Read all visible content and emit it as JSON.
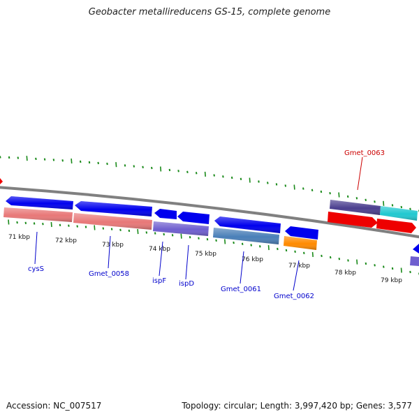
{
  "title": "Geobacter metallireducens GS-15, complete genome",
  "footer": {
    "accession": "Accession: NC_007517",
    "summary": "Topology: circular; Length: 3,997,420 bp; Genes: 3,577"
  },
  "kbp_labels": [
    "71 kbp",
    "72 kbp",
    "73 kbp",
    "74 kbp",
    "75 kbp",
    "76 kbp",
    "77 kbp",
    "78 kbp",
    "79 kbp"
  ],
  "gene_labels": [
    {
      "text": "cysS",
      "color": "#0000cc"
    },
    {
      "text": "Gmet_0058",
      "color": "#0000cc"
    },
    {
      "text": "ispF",
      "color": "#0000cc"
    },
    {
      "text": "ispD",
      "color": "#0000cc"
    },
    {
      "text": "Gmet_0061",
      "color": "#0000cc"
    },
    {
      "text": "Gmet_0062",
      "color": "#0000cc"
    },
    {
      "text": "Gmet_0063",
      "color": "#cc0000"
    }
  ],
  "colors": {
    "cds_blue": "#0000ee",
    "rna_pink": "#e87878",
    "purple": "#6f5fcf",
    "steelblue": "#4a7fb8",
    "orange": "#ff8a00",
    "darkpurple": "#4b3f8f",
    "cyan": "#20c8d0",
    "red": "#ee0000",
    "tick_green": "#1a8a1a",
    "backbone": "#808080"
  }
}
